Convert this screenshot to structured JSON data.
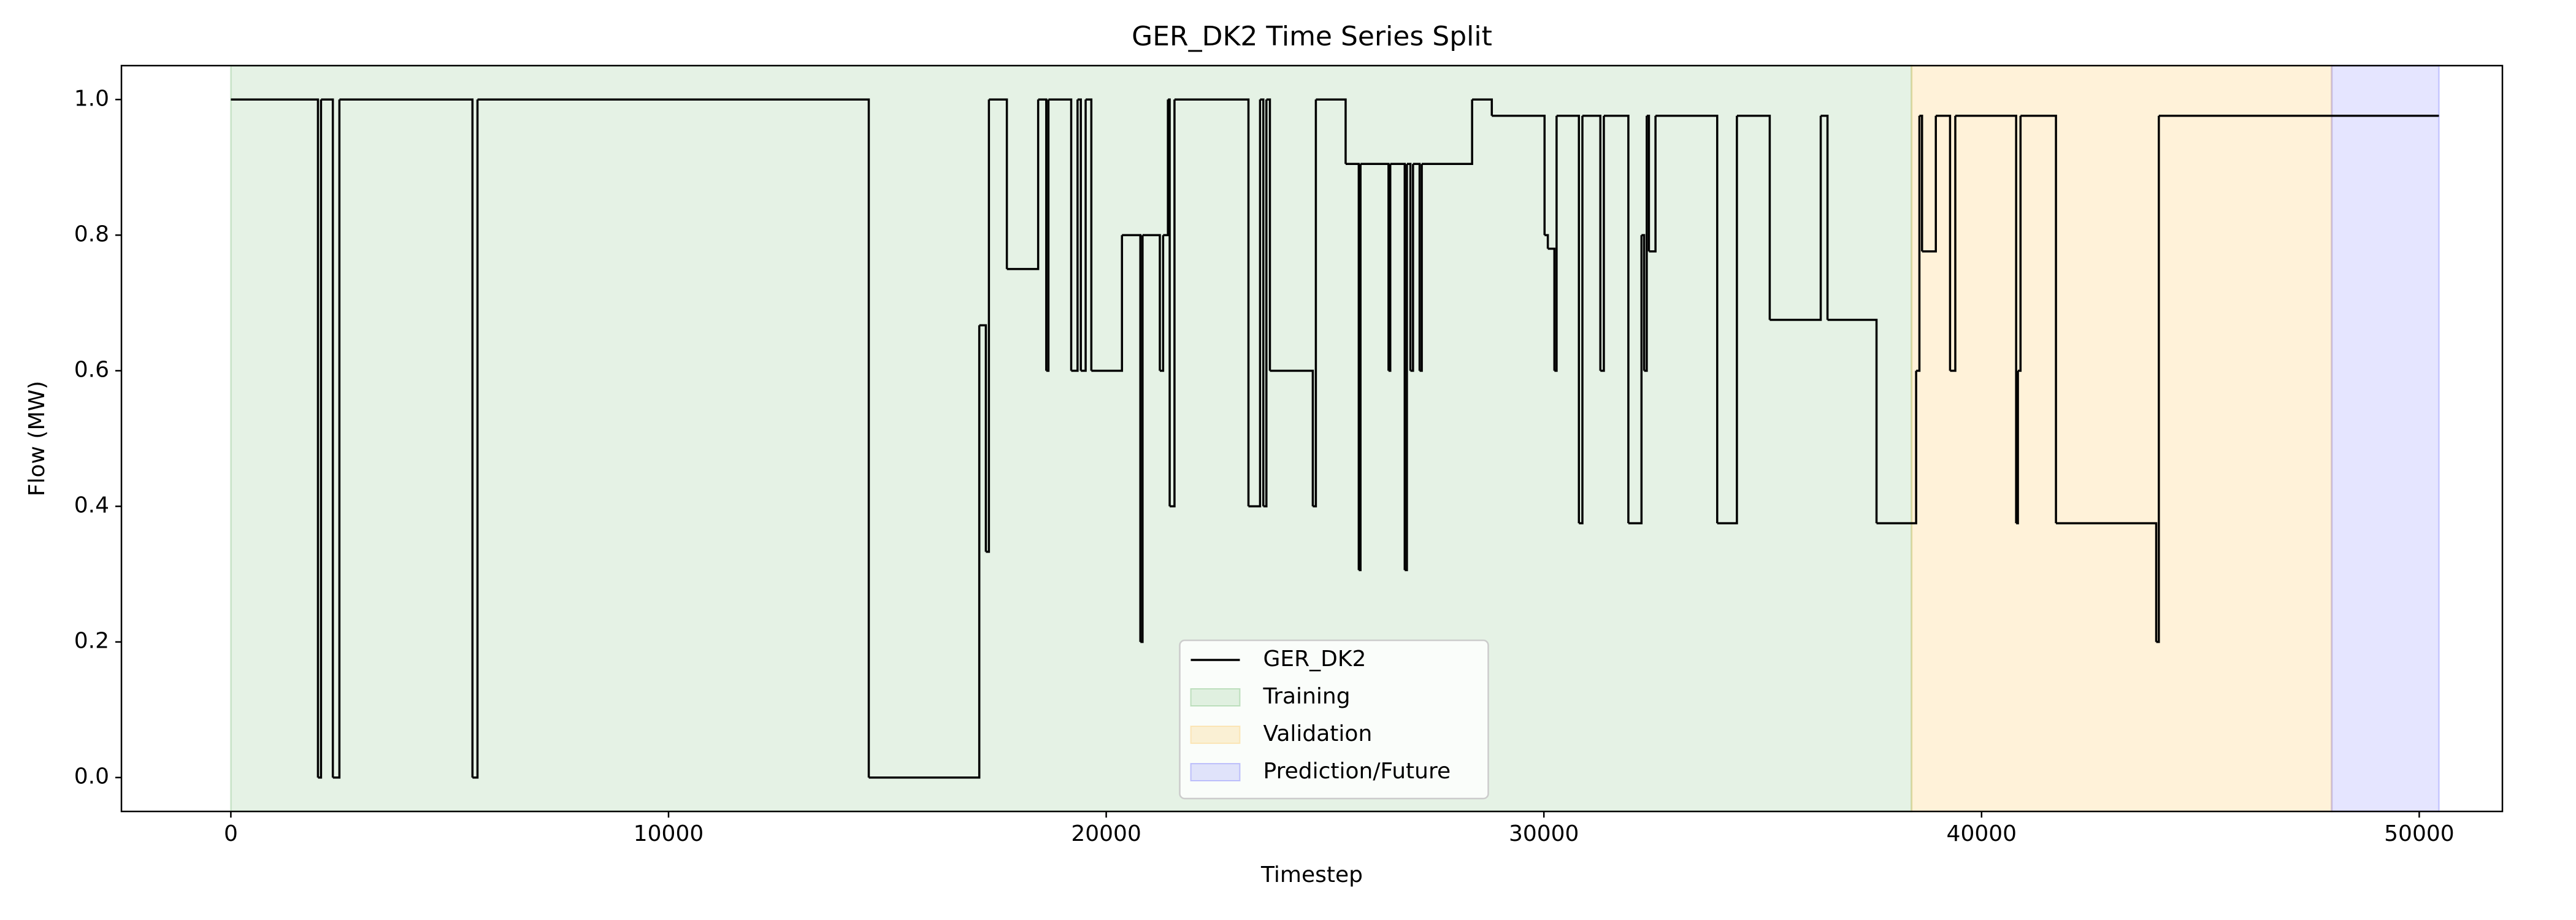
{
  "chart_data": {
    "type": "step",
    "title": "GER_DK2 Time Series Split",
    "xlabel": "Timestep",
    "ylabel": "Flow (MW)",
    "x": [
      0,
      1990,
      2060,
      2330,
      2480,
      5520,
      5635,
      14575,
      17100,
      17250,
      17320,
      17730,
      18445,
      18630,
      18680,
      19200,
      19345,
      19420,
      19530,
      19660,
      20360,
      20780,
      20830,
      21225,
      21300,
      21410,
      21450,
      21560,
      23250,
      23515,
      23590,
      23660,
      23740,
      24720,
      24790,
      25470,
      25770,
      25810,
      26450,
      26490,
      26820,
      26870,
      26950,
      27010,
      27160,
      27210,
      28360,
      28810,
      30015,
      30090,
      30240,
      30290,
      30800,
      30880,
      31290,
      31370,
      31930,
      32230,
      32290,
      32350,
      32400,
      32550,
      33960,
      34410,
      35160,
      36325,
      36480,
      37600,
      38505,
      38580,
      38640,
      38955,
      39280,
      39400,
      40790,
      40830,
      40890,
      41700,
      43990,
      44050,
      50450
    ],
    "series": [
      {
        "name": "GER_DK2",
        "color": "#000000",
        "values": [
          1.0,
          0,
          1.0,
          0,
          1.0,
          0,
          1.0,
          0,
          0.667,
          0.333,
          1.0,
          0.75,
          1.0,
          0.6,
          1.0,
          0.6,
          1.0,
          0.6,
          1.0,
          0.6,
          0.8,
          0.2,
          0.8,
          0.6,
          0.8,
          1.0,
          0.4,
          1.0,
          0.4,
          1.0,
          0.4,
          1.0,
          0.6,
          0.4,
          1.0,
          0.905,
          0.306,
          0.905,
          0.6,
          0.905,
          0.306,
          0.905,
          0.6,
          0.905,
          0.6,
          0.905,
          1.0,
          0.976,
          0.8,
          0.78,
          0.6,
          0.976,
          0.375,
          0.976,
          0.6,
          0.976,
          0.375,
          0.8,
          0.6,
          0.976,
          0.776,
          0.976,
          0.375,
          0.976,
          0.675,
          0.976,
          0.675,
          0.375,
          0.6,
          0.976,
          0.776,
          0.976,
          0.6,
          0.976,
          0.375,
          0.6,
          0.976,
          0.375,
          0.2,
          0.976,
          0.976
        ]
      }
    ],
    "regions": [
      {
        "name": "Training",
        "color": "green",
        "range": [
          0,
          38400
        ]
      },
      {
        "name": "Validation",
        "color": "orange",
        "range": [
          38400,
          48000
        ]
      },
      {
        "name": "Prediction/Future",
        "color": "blue",
        "range": [
          48000,
          50450
        ]
      }
    ],
    "xlim": [
      -2500,
      51900
    ],
    "ylim": [
      -0.05,
      1.05
    ],
    "xticks": [
      0,
      10000,
      20000,
      30000,
      40000,
      50000
    ],
    "yticks": [
      {
        "value": 0,
        "label": "0.0"
      },
      0.2,
      0.4,
      0.6,
      0.8,
      {
        "value": 1,
        "label": "1.0"
      }
    ],
    "legend": "lower center"
  }
}
